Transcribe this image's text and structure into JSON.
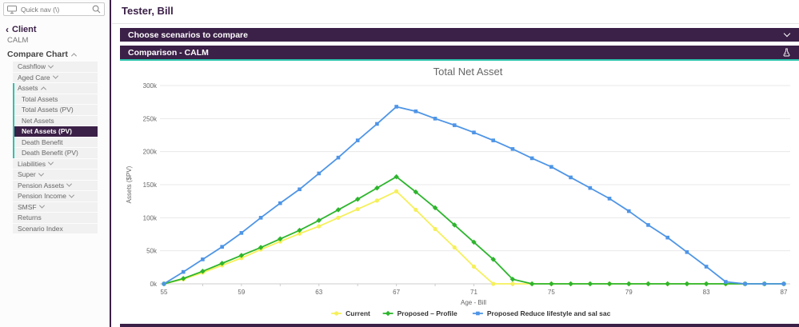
{
  "sidebar": {
    "quick_nav_placeholder": "Quick nav (\\)",
    "client_label": "Client",
    "client_name": "CALM",
    "section_title": "Compare Chart",
    "menu_top": [
      {
        "label": "Cashflow",
        "chevron": "down"
      },
      {
        "label": "Aged Care",
        "chevron": "down"
      }
    ],
    "assets_group": {
      "header": {
        "label": "Assets",
        "chevron": "up"
      },
      "children": [
        {
          "label": "Total Assets"
        },
        {
          "label": "Total Assets (PV)"
        },
        {
          "label": "Net Assets"
        },
        {
          "label": "Net Assets (PV)",
          "selected": true
        },
        {
          "label": "Death Benefit"
        },
        {
          "label": "Death Benefit (PV)"
        }
      ]
    },
    "menu_bottom": [
      {
        "label": "Liabilities",
        "chevron": "down"
      },
      {
        "label": "Super",
        "chevron": "down"
      },
      {
        "label": "Pension Assets",
        "chevron": "down"
      },
      {
        "label": "Pension Income",
        "chevron": "down"
      },
      {
        "label": "SMSF",
        "chevron": "down"
      },
      {
        "label": "Returns"
      },
      {
        "label": "Scenario Index"
      }
    ]
  },
  "header": {
    "title": "Tester, Bill"
  },
  "panels": {
    "choose": "Choose scenarios to compare",
    "comparison": "Comparison - CALM"
  },
  "chart_data": {
    "type": "line",
    "title": "Total Net Asset",
    "xlabel": "Age - Bill",
    "ylabel": "Assets ($PV)",
    "units": "thousands of dollars (k)",
    "x": [
      55,
      56,
      57,
      58,
      59,
      60,
      61,
      62,
      63,
      64,
      65,
      66,
      67,
      68,
      69,
      70,
      71,
      72,
      73,
      74,
      75,
      76,
      77,
      78,
      79,
      80,
      81,
      82,
      83,
      84,
      85,
      86,
      87
    ],
    "x_tick_labels": [
      55,
      59,
      63,
      67,
      71,
      75,
      79,
      83,
      87
    ],
    "ylim": [
      0,
      300
    ],
    "y_ticks": [
      0,
      50,
      100,
      150,
      200,
      250,
      300
    ],
    "y_tick_labels": [
      "0k",
      "50k",
      "100k",
      "150k",
      "200k",
      "250k",
      "300k"
    ],
    "grid": true,
    "legend_position": "bottom",
    "series": [
      {
        "name": "Current",
        "color": "#f5f05a",
        "marker": "circle",
        "values": [
          0,
          7,
          17,
          28,
          39,
          52,
          64,
          76,
          87,
          100,
          113,
          126,
          140,
          112,
          83,
          55,
          26,
          0,
          0,
          0,
          0,
          0,
          0,
          0,
          0,
          0,
          0,
          0,
          0,
          0,
          0,
          0,
          0
        ]
      },
      {
        "name": "Proposed – Profile",
        "color": "#2db52d",
        "marker": "diamond",
        "values": [
          0,
          8,
          19,
          31,
          43,
          55,
          68,
          81,
          96,
          112,
          128,
          145,
          162,
          139,
          115,
          89,
          63,
          37,
          7,
          0,
          0,
          0,
          0,
          0,
          0,
          0,
          0,
          0,
          0,
          0,
          0,
          0,
          0
        ]
      },
      {
        "name": "Proposed Reduce lifestyle and sal sac",
        "color": "#4e95e6",
        "marker": "square",
        "values": [
          0,
          18,
          37,
          56,
          77,
          100,
          122,
          143,
          167,
          191,
          217,
          242,
          268,
          261,
          250,
          240,
          229,
          217,
          204,
          190,
          177,
          161,
          145,
          129,
          110,
          89,
          70,
          48,
          26,
          3,
          0,
          0,
          0
        ]
      }
    ]
  },
  "colors": {
    "brand_purple": "#3b2047",
    "accent_teal": "#2cc5ad",
    "grid_line": "#e8e8e8",
    "axis_line": "#cccccc",
    "axis_text": "#666666"
  }
}
